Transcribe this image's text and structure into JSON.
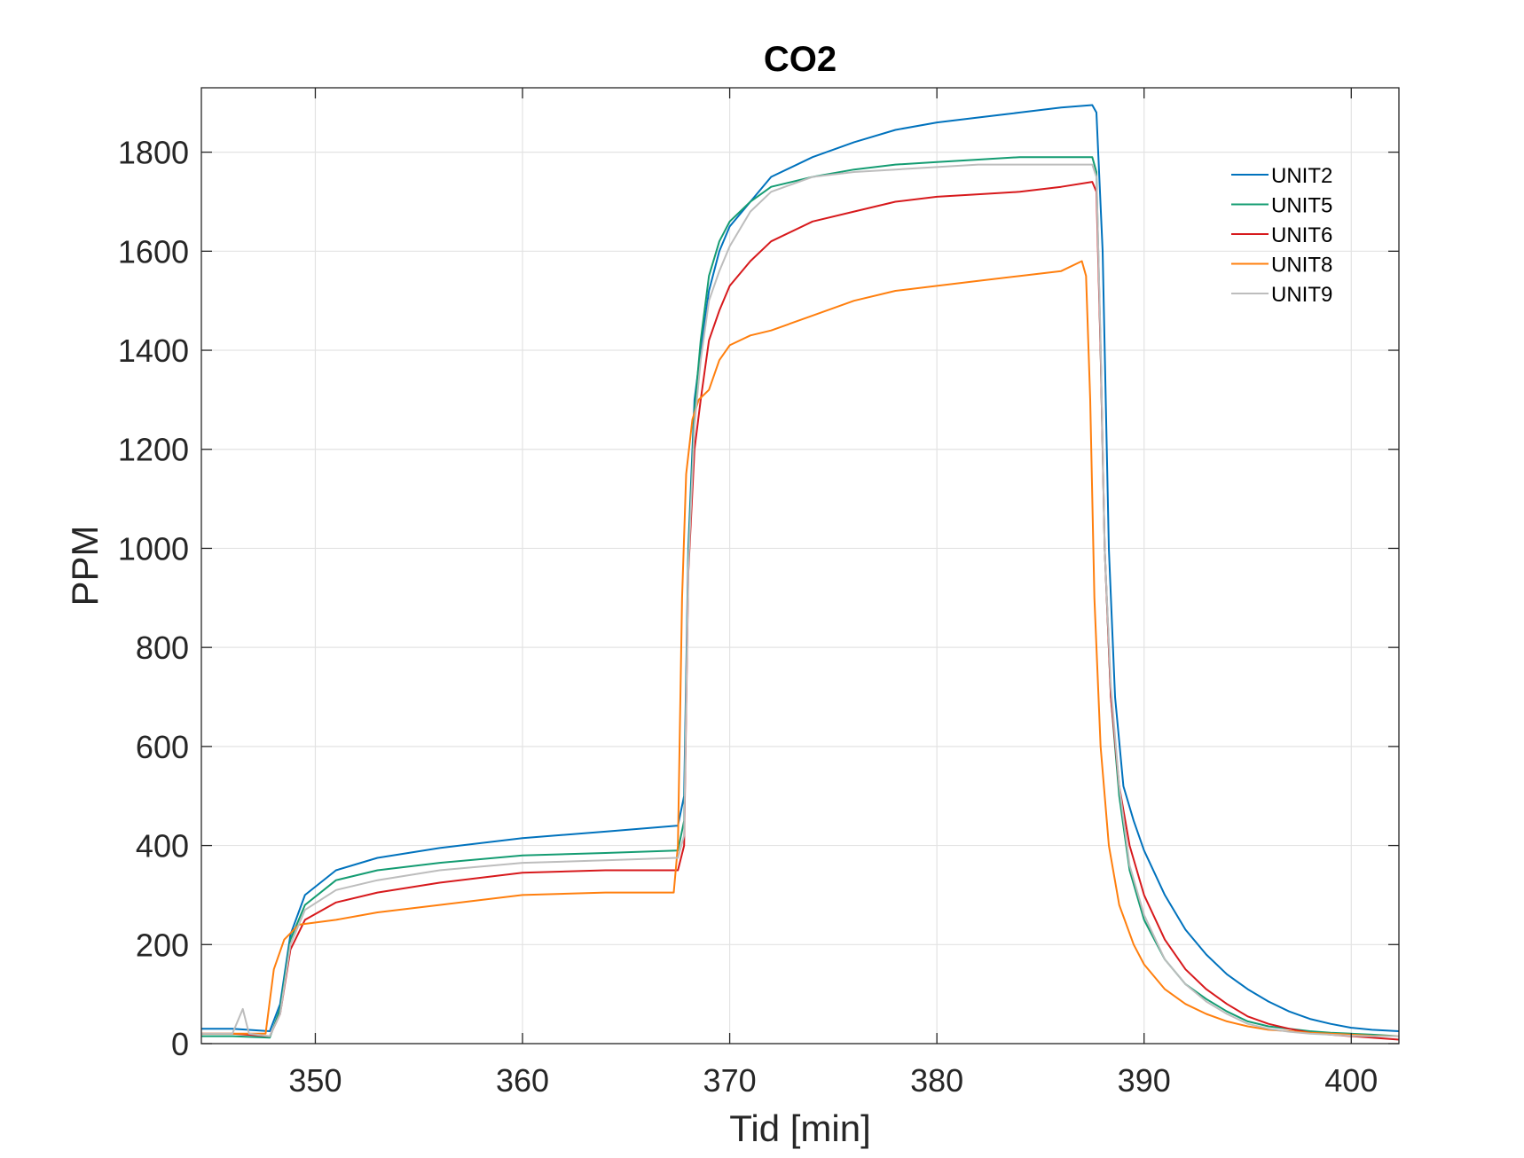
{
  "chart_data": {
    "type": "line",
    "title": "CO2",
    "xlabel": "Tid [min]",
    "ylabel": "PPM",
    "xlim": [
      344.5,
      402.3
    ],
    "ylim": [
      0,
      1930
    ],
    "xticks": [
      350,
      360,
      370,
      380,
      390,
      400
    ],
    "yticks": [
      0,
      200,
      400,
      600,
      800,
      1000,
      1200,
      1400,
      1600,
      1800
    ],
    "grid": true,
    "legend_position": "top-right",
    "series": [
      {
        "name": "UNIT2",
        "color": "#0072BD",
        "x": [
          344.5,
          346,
          347.8,
          348.3,
          348.8,
          349.5,
          351,
          353,
          356,
          360,
          364,
          367.5,
          367.8,
          368,
          368.3,
          368.6,
          369,
          369.5,
          370,
          371,
          372,
          374,
          376,
          378,
          380,
          382,
          384,
          386,
          387.5,
          387.7,
          388,
          388.3,
          388.6,
          389,
          389.5,
          390,
          391,
          392,
          393,
          394,
          395,
          396,
          397,
          398,
          399,
          400,
          401,
          402.3
        ],
        "y": [
          30,
          30,
          25,
          80,
          220,
          300,
          350,
          375,
          395,
          415,
          428,
          440,
          500,
          1000,
          1300,
          1400,
          1520,
          1600,
          1650,
          1700,
          1750,
          1790,
          1820,
          1845,
          1860,
          1870,
          1880,
          1890,
          1895,
          1880,
          1600,
          1000,
          700,
          520,
          450,
          390,
          300,
          230,
          180,
          140,
          110,
          85,
          65,
          50,
          40,
          32,
          28,
          25
        ]
      },
      {
        "name": "UNIT5",
        "color": "#149C72",
        "x": [
          344.5,
          346,
          347.8,
          348.3,
          348.8,
          349.5,
          351,
          353,
          356,
          360,
          364,
          367.5,
          367.8,
          368,
          368.3,
          368.6,
          369,
          369.5,
          370,
          371,
          372,
          374,
          376,
          378,
          380,
          382,
          384,
          386,
          387.5,
          387.7,
          387.9,
          388.1,
          388.4,
          388.8,
          389.3,
          390,
          391,
          392,
          393,
          394,
          395,
          396,
          397,
          398,
          399,
          400,
          401,
          402.3
        ],
        "y": [
          15,
          15,
          12,
          70,
          210,
          280,
          330,
          350,
          365,
          380,
          385,
          390,
          450,
          980,
          1280,
          1420,
          1550,
          1620,
          1660,
          1700,
          1730,
          1750,
          1765,
          1775,
          1780,
          1785,
          1790,
          1790,
          1790,
          1760,
          1400,
          1000,
          700,
          500,
          350,
          250,
          170,
          120,
          90,
          65,
          45,
          35,
          30,
          25,
          22,
          20,
          18,
          15
        ]
      },
      {
        "name": "UNIT6",
        "color": "#D7191C",
        "x": [
          344.5,
          346,
          347.8,
          348.3,
          348.8,
          349.5,
          351,
          353,
          356,
          360,
          364,
          367.5,
          367.8,
          368,
          368.3,
          368.6,
          369,
          369.5,
          370,
          371,
          372,
          374,
          376,
          378,
          380,
          382,
          384,
          386,
          387.5,
          387.7,
          387.9,
          388.1,
          388.4,
          388.8,
          389.3,
          390,
          391,
          392,
          393,
          394,
          395,
          396,
          397,
          398,
          399,
          400,
          401,
          402.3
        ],
        "y": [
          20,
          20,
          15,
          60,
          190,
          250,
          285,
          305,
          325,
          345,
          350,
          350,
          400,
          950,
          1200,
          1300,
          1420,
          1480,
          1530,
          1580,
          1620,
          1660,
          1680,
          1700,
          1710,
          1715,
          1720,
          1730,
          1740,
          1720,
          1400,
          1000,
          700,
          520,
          400,
          300,
          210,
          150,
          110,
          80,
          55,
          40,
          30,
          22,
          18,
          15,
          12,
          8
        ]
      },
      {
        "name": "UNIT8",
        "color": "#FF7F0E",
        "x": [
          344.5,
          346,
          347.6,
          348,
          348.5,
          349.2,
          351,
          353,
          356,
          360,
          364,
          367.3,
          367.5,
          367.7,
          367.9,
          368.2,
          368.5,
          369,
          369.5,
          370,
          371,
          372,
          374,
          376,
          378,
          380,
          382,
          384,
          386,
          387,
          387.2,
          387.4,
          387.6,
          387.9,
          388.3,
          388.8,
          389.5,
          390,
          391,
          392,
          393,
          394,
          395,
          396,
          397,
          398,
          399,
          400,
          401,
          402.3
        ],
        "y": [
          20,
          20,
          20,
          150,
          210,
          240,
          250,
          265,
          280,
          300,
          305,
          305,
          400,
          900,
          1150,
          1260,
          1300,
          1320,
          1380,
          1410,
          1430,
          1440,
          1470,
          1500,
          1520,
          1530,
          1540,
          1550,
          1560,
          1580,
          1550,
          1300,
          900,
          600,
          400,
          280,
          200,
          160,
          110,
          80,
          60,
          45,
          35,
          28,
          25,
          22,
          20,
          18,
          16,
          15
        ]
      },
      {
        "name": "UNIT9",
        "color": "#BDBDBD",
        "x": [
          344.5,
          346,
          346.5,
          346.8,
          347.8,
          348.3,
          348.8,
          349.5,
          351,
          353,
          356,
          360,
          364,
          367.5,
          367.8,
          368,
          368.3,
          368.6,
          369,
          369.5,
          370,
          371,
          372,
          374,
          376,
          378,
          380,
          382,
          384,
          386,
          387.5,
          387.7,
          387.9,
          388.1,
          388.4,
          388.8,
          389.3,
          390,
          391,
          392,
          393,
          394,
          395,
          396,
          397,
          398,
          399,
          400,
          401,
          402.3
        ],
        "y": [
          20,
          20,
          70,
          20,
          15,
          60,
          200,
          270,
          310,
          330,
          350,
          365,
          370,
          375,
          420,
          960,
          1250,
          1380,
          1500,
          1560,
          1610,
          1680,
          1720,
          1750,
          1760,
          1765,
          1770,
          1775,
          1775,
          1775,
          1775,
          1750,
          1420,
          1000,
          720,
          520,
          360,
          260,
          170,
          120,
          85,
          60,
          40,
          30,
          24,
          20,
          18,
          16,
          15,
          15
        ]
      }
    ]
  }
}
